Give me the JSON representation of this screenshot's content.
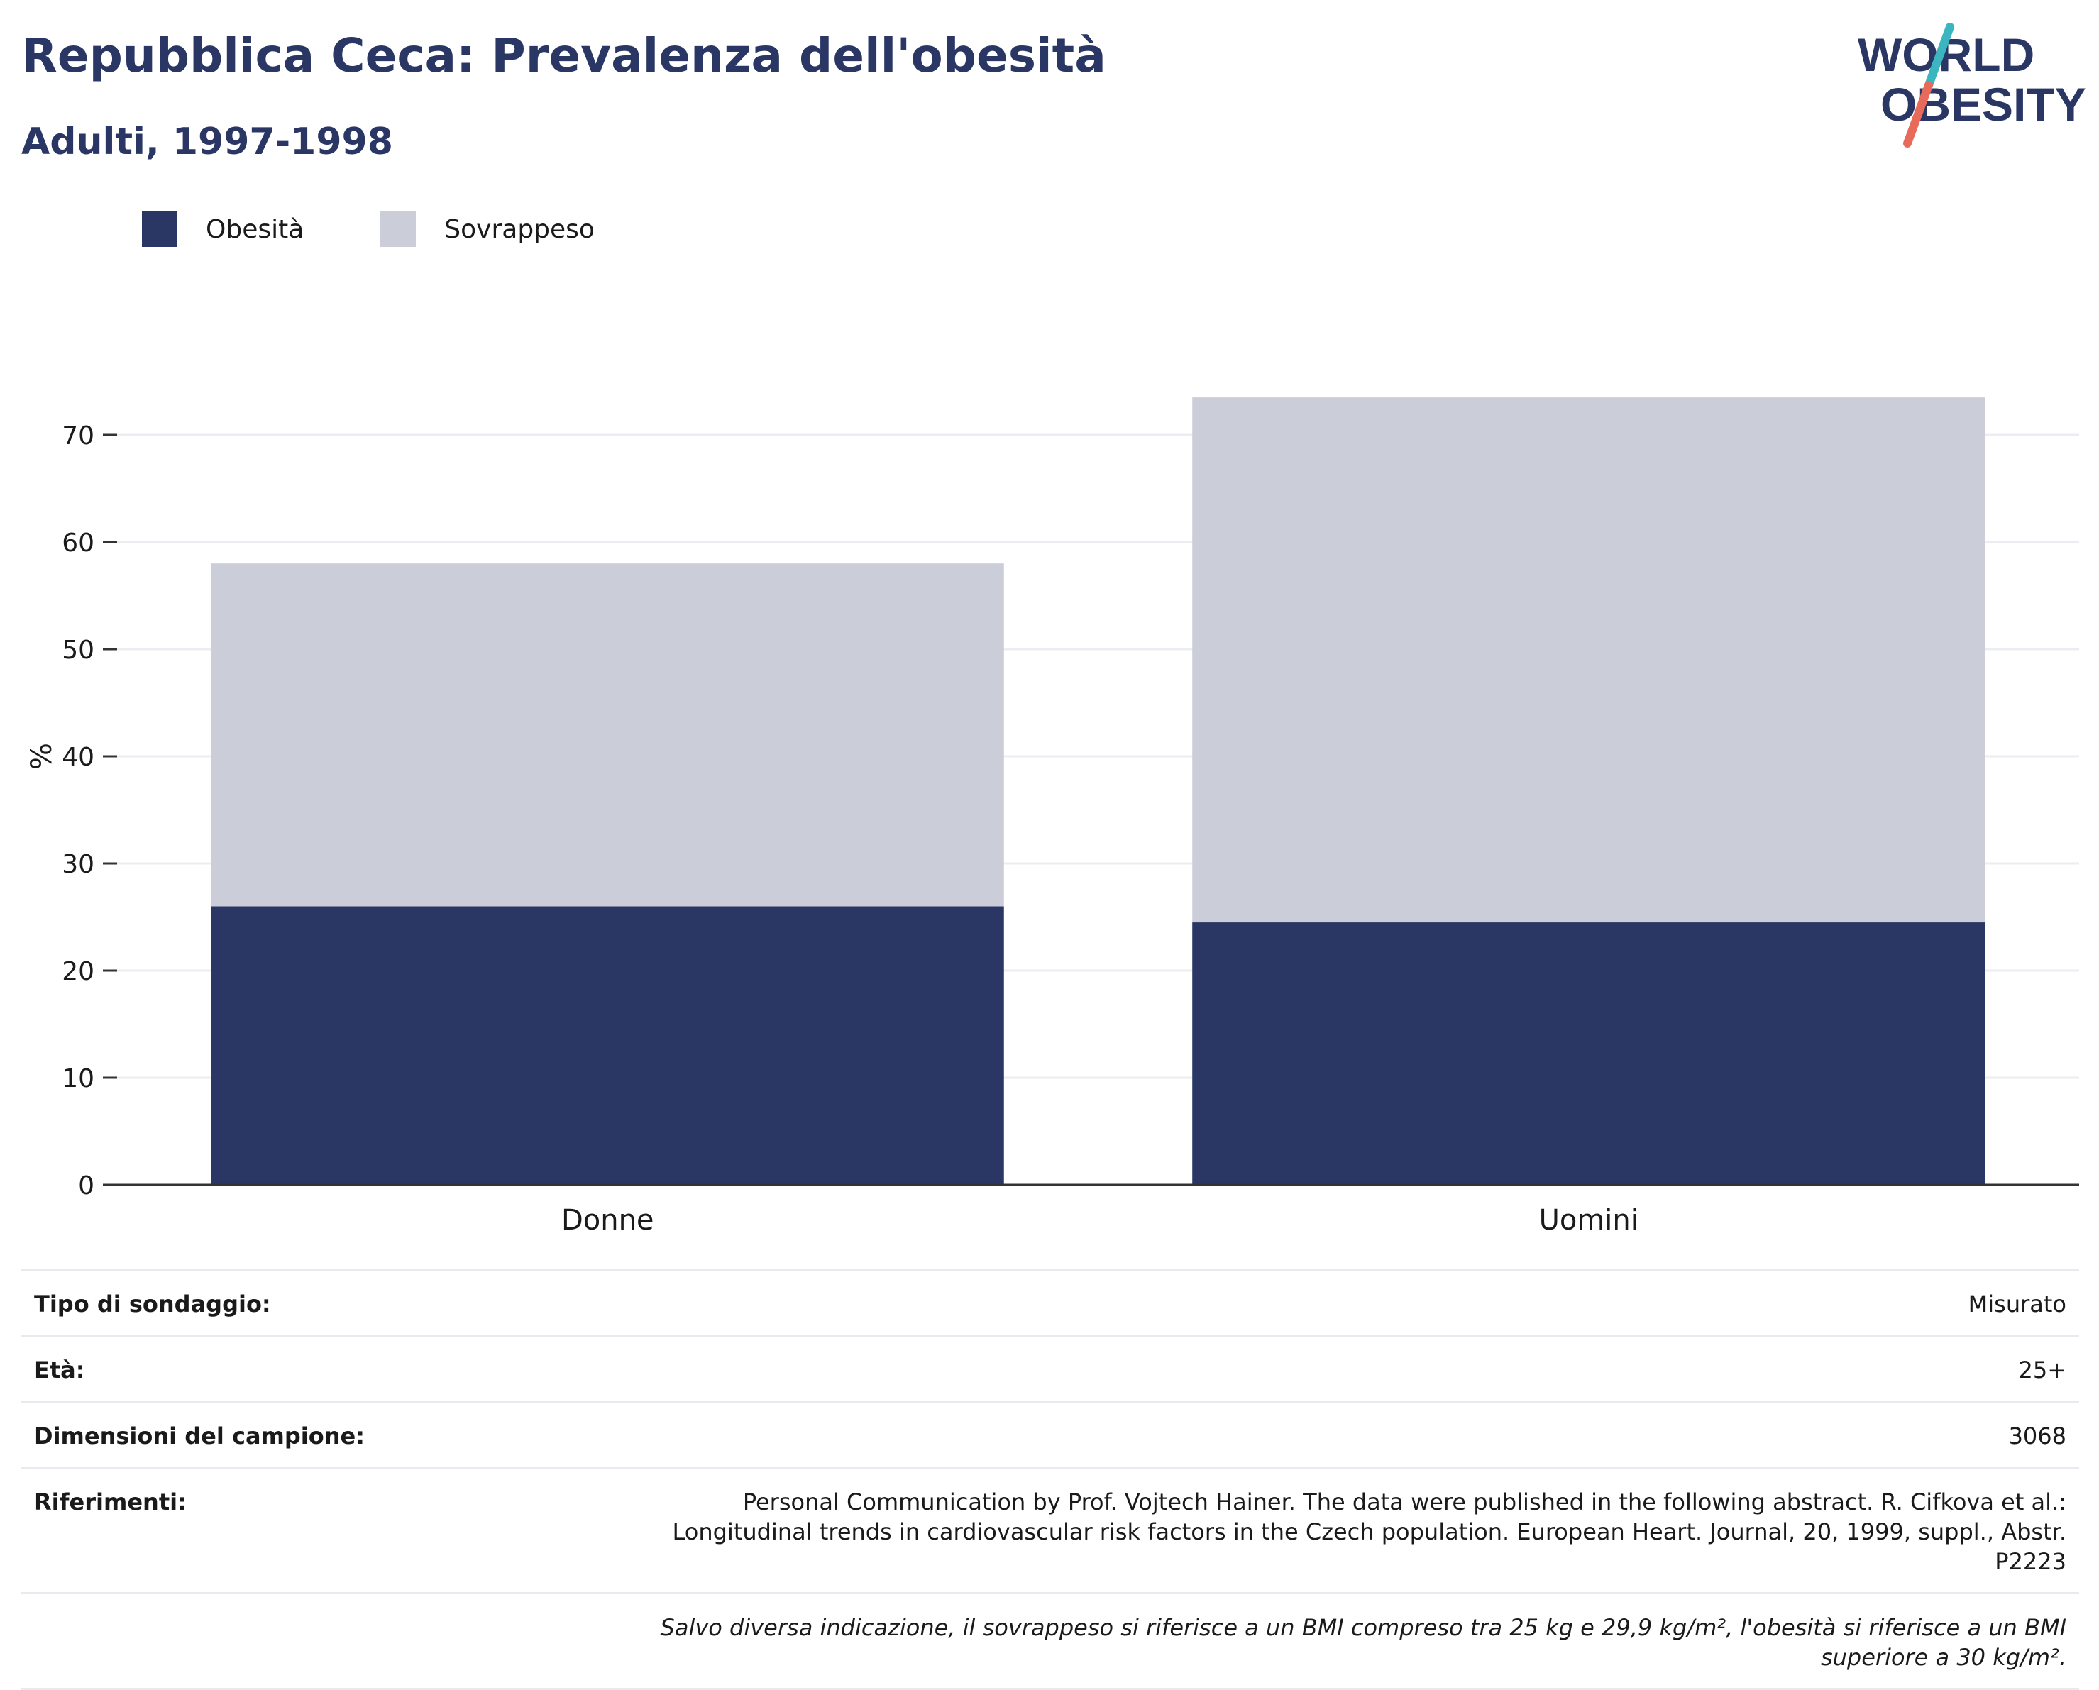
{
  "header": {
    "title": "Repubblica Ceca: Prevalenza dell'obesità",
    "subtitle": "Adulti, 1997-1998"
  },
  "logo": {
    "line1": "WORLD",
    "line2": "OBESITY"
  },
  "colors": {
    "obesity": "#2a3764",
    "overweight": "#cbcdd9",
    "title": "#2a3764",
    "logo_teal": "#3bb6c1",
    "logo_coral": "#e86a5a"
  },
  "legend": [
    {
      "label": "Obesità",
      "color": "#2a3764"
    },
    {
      "label": "Sovrappeso",
      "color": "#cbcdd9"
    }
  ],
  "chart_data": {
    "type": "bar",
    "stacked": true,
    "categories": [
      "Donne",
      "Uomini"
    ],
    "series": [
      {
        "name": "Obesità",
        "values": [
          26,
          24.5
        ]
      },
      {
        "name": "Sovrappeso",
        "values": [
          32,
          49
        ]
      }
    ],
    "ylabel": "%",
    "ylim": [
      0,
      75
    ],
    "yticks": [
      0,
      10,
      20,
      30,
      40,
      50,
      60,
      70
    ],
    "grid": true,
    "legend_position": "top-left"
  },
  "info": {
    "rows": [
      {
        "label": "Tipo di sondaggio:",
        "value": "Misurato"
      },
      {
        "label": "Età:",
        "value": "25+"
      },
      {
        "label": "Dimensioni del campione:",
        "value": "3068"
      },
      {
        "label": "Riferimenti:",
        "value": "Personal Communication by Prof. Vojtech Hainer. The data were published in the following abstract. R. Cifkova et al.: Longitudinal trends in cardiovascular risk factors in the Czech population. European Heart. Journal, 20, 1999, suppl., Abstr. P2223"
      }
    ],
    "note": "Salvo diversa indicazione, il sovrappeso si riferisce a un BMI compreso tra 25 kg e 29,9 kg/m², l'obesità si riferisce a un BMI superiore a 30 kg/m²."
  }
}
